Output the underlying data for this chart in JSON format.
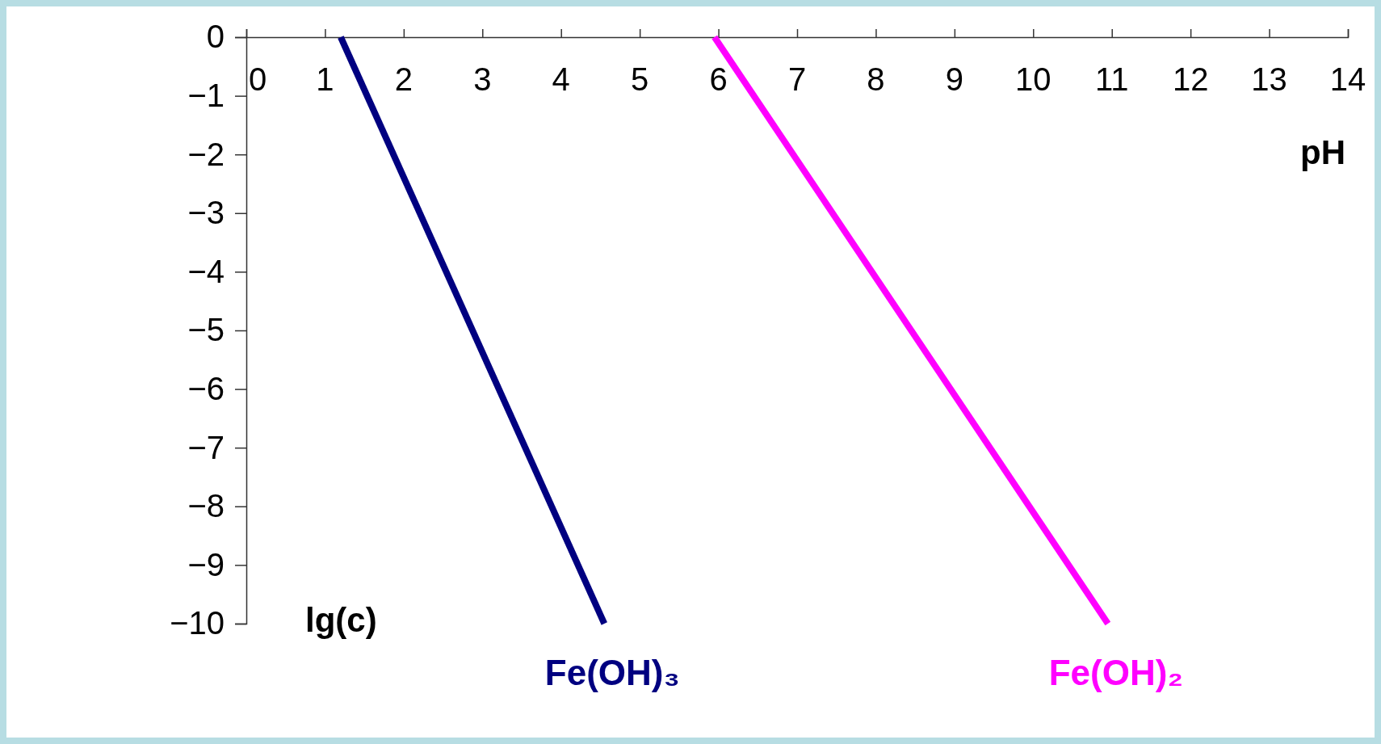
{
  "chart_data": {
    "type": "line",
    "xlabel": "pH",
    "ylabel": "lg(c)",
    "xlim": [
      0,
      14
    ],
    "xticks": [
      0,
      1,
      2,
      3,
      4,
      5,
      6,
      7,
      8,
      9,
      10,
      11,
      12,
      13,
      14
    ],
    "ylim": [
      -10,
      0
    ],
    "yticks": [
      0,
      -1,
      -2,
      -3,
      -4,
      -5,
      -6,
      -7,
      -8,
      -9,
      -10
    ],
    "grid": false,
    "marker": "none",
    "line_style": "solid",
    "series": [
      {
        "name": "Fe(OH)₃",
        "color": "#000080",
        "x": [
          1.2,
          4.55
        ],
        "values": [
          0,
          -10
        ]
      },
      {
        "name": "Fe(OH)₂",
        "color": "#ff00ff",
        "x": [
          5.95,
          10.95
        ],
        "values": [
          0,
          -10
        ]
      }
    ]
  }
}
